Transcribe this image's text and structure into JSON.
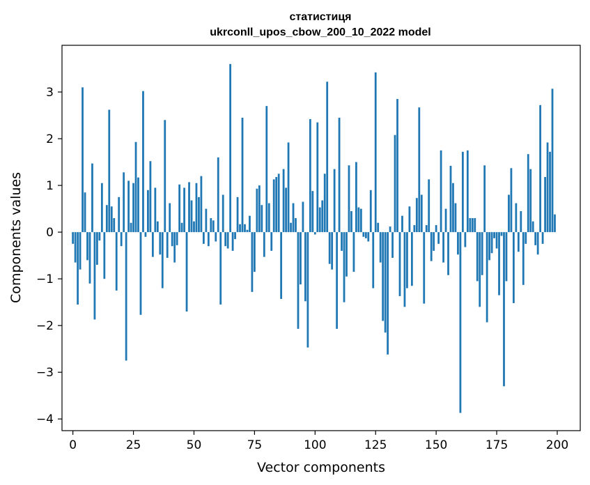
{
  "chart_data": {
    "type": "bar",
    "title": "статистиця",
    "subtitle": "ukrconll_upos_cbow_200_10_2022 model",
    "xlabel": "Vector components",
    "ylabel": "Components values",
    "xlim": [
      -4.5,
      209.5
    ],
    "ylim": [
      -4.25,
      4.0
    ],
    "xticks": [
      0,
      25,
      50,
      75,
      100,
      125,
      150,
      175,
      200
    ],
    "yticks": [
      -4,
      -3,
      -2,
      -1,
      0,
      1,
      2,
      3
    ],
    "bar_color": "#1f77b4",
    "x": [
      0,
      1,
      2,
      3,
      4,
      5,
      6,
      7,
      8,
      9,
      10,
      11,
      12,
      13,
      14,
      15,
      16,
      17,
      18,
      19,
      20,
      21,
      22,
      23,
      24,
      25,
      26,
      27,
      28,
      29,
      30,
      31,
      32,
      33,
      34,
      35,
      36,
      37,
      38,
      39,
      40,
      41,
      42,
      43,
      44,
      45,
      46,
      47,
      48,
      49,
      50,
      51,
      52,
      53,
      54,
      55,
      56,
      57,
      58,
      59,
      60,
      61,
      62,
      63,
      64,
      65,
      66,
      67,
      68,
      69,
      70,
      71,
      72,
      73,
      74,
      75,
      76,
      77,
      78,
      79,
      80,
      81,
      82,
      83,
      84,
      85,
      86,
      87,
      88,
      89,
      90,
      91,
      92,
      93,
      94,
      95,
      96,
      97,
      98,
      99,
      100,
      101,
      102,
      103,
      104,
      105,
      106,
      107,
      108,
      109,
      110,
      111,
      112,
      113,
      114,
      115,
      116,
      117,
      118,
      119,
      120,
      121,
      122,
      123,
      124,
      125,
      126,
      127,
      128,
      129,
      130,
      131,
      132,
      133,
      134,
      135,
      136,
      137,
      138,
      139,
      140,
      141,
      142,
      143,
      144,
      145,
      146,
      147,
      148,
      149,
      150,
      151,
      152,
      153,
      154,
      155,
      156,
      157,
      158,
      159,
      160,
      161,
      162,
      163,
      164,
      165,
      166,
      167,
      168,
      169,
      170,
      171,
      172,
      173,
      174,
      175,
      176,
      177,
      178,
      179,
      180,
      181,
      182,
      183,
      184,
      185,
      186,
      187,
      188,
      189,
      190,
      191,
      192,
      193,
      194,
      195,
      196,
      197,
      198,
      199
    ],
    "values": [
      -0.25,
      -0.65,
      -1.55,
      -0.8,
      3.1,
      0.85,
      -0.6,
      -1.1,
      1.47,
      -1.87,
      -0.7,
      -0.18,
      1.05,
      -1.0,
      0.58,
      2.62,
      0.55,
      0.3,
      -1.25,
      0.75,
      -0.3,
      1.28,
      -2.75,
      1.1,
      0.2,
      1.05,
      1.93,
      1.17,
      -1.77,
      3.02,
      -0.1,
      0.9,
      1.52,
      -0.53,
      0.95,
      0.23,
      -0.48,
      -1.2,
      2.4,
      -0.55,
      0.62,
      -0.3,
      -0.65,
      -0.28,
      1.02,
      0.2,
      0.95,
      -1.7,
      1.07,
      0.68,
      0.23,
      1.05,
      0.75,
      1.2,
      -0.25,
      0.5,
      -0.3,
      0.3,
      0.25,
      -0.2,
      1.6,
      -1.55,
      0.8,
      -0.3,
      -0.35,
      3.6,
      -0.4,
      -0.15,
      0.75,
      0.17,
      2.45,
      0.17,
      0.05,
      0.35,
      -1.28,
      -0.85,
      0.93,
      1.0,
      0.58,
      -0.53,
      2.7,
      0.62,
      -0.4,
      1.13,
      1.18,
      1.25,
      -1.43,
      1.35,
      0.95,
      1.92,
      0.2,
      0.62,
      0.3,
      -2.07,
      -1.12,
      0.65,
      -1.48,
      -2.47,
      2.42,
      0.88,
      -0.05,
      2.35,
      0.53,
      0.68,
      1.25,
      3.22,
      -0.68,
      -0.8,
      1.35,
      -2.07,
      2.45,
      -0.4,
      -1.5,
      -0.95,
      1.43,
      0.45,
      -0.85,
      1.5,
      0.53,
      0.5,
      -0.1,
      -0.13,
      -0.2,
      0.9,
      -1.2,
      3.42,
      0.2,
      -0.65,
      -1.9,
      -2.15,
      -2.62,
      0.12,
      -0.55,
      2.08,
      2.85,
      -1.37,
      0.35,
      -1.6,
      -1.2,
      0.55,
      -1.15,
      0.15,
      0.73,
      2.67,
      0.8,
      -1.53,
      0.15,
      1.13,
      -0.62,
      -0.4,
      0.15,
      -0.25,
      1.75,
      -0.65,
      0.5,
      -0.92,
      1.42,
      1.05,
      0.62,
      -0.48,
      -3.87,
      1.72,
      -0.32,
      1.75,
      0.3,
      0.3,
      0.3,
      -1.05,
      -1.6,
      -0.92,
      1.43,
      -1.93,
      -0.6,
      -0.45,
      -0.13,
      -0.35,
      -1.35,
      -0.08,
      -3.3,
      -1.05,
      0.8,
      1.37,
      -1.52,
      0.62,
      -0.42,
      0.45,
      -1.13,
      -0.25,
      1.67,
      1.35,
      0.23,
      -0.28,
      -0.48,
      2.72,
      -0.25,
      1.18,
      1.92,
      1.72,
      3.07,
      0.38
    ]
  }
}
